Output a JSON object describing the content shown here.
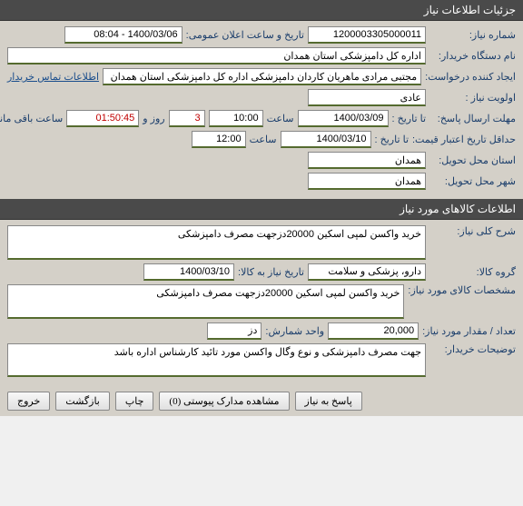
{
  "section1": {
    "title": "جزئیات اطلاعات نیاز",
    "need_number_label": "شماره نیاز:",
    "need_number": "1200003305000011",
    "public_date_label": "تاریخ و ساعت اعلان عمومی:",
    "public_date": "1400/03/06 - 08:04",
    "buyer_org_label": "نام دستگاه خریدار:",
    "buyer_org": "اداره کل دامپزشکی استان همدان",
    "requester_label": "ایجاد کننده درخواست:",
    "requester": "مجتبی مرادی ماهریان کاردان دامپزشکی اداره کل دامپزشکی استان همدان",
    "contact_link": "اطلاعات تماس خریدار",
    "priority_label": "اولویت نیاز :",
    "priority": "عادی",
    "response_deadline_label": "مهلت ارسال پاسخ:",
    "to_date_label": "تا تاریخ :",
    "response_date": "1400/03/09",
    "time_label": "ساعت",
    "response_time": "10:00",
    "days_remaining": "3",
    "days_label": "روز و",
    "time_remaining": "01:50:45",
    "remaining_label": "ساعت باقی مانده",
    "price_validity_label": "حداقل تاریخ اعتبار قیمت:",
    "price_date": "1400/03/10",
    "price_time": "12:00",
    "delivery_province_label": "استان محل تحویل:",
    "delivery_province": "همدان",
    "delivery_city_label": "شهر محل تحویل:",
    "delivery_city": "همدان"
  },
  "section2": {
    "title": "اطلاعات کالاهای مورد نیاز",
    "desc_label": "شرح کلی نیاز:",
    "desc": "خرید واکسن لمپی اسکین 20000دزجهت مصرف دامپزشکی",
    "group_label": "گروه کالا:",
    "group": "دارو، پزشکی و سلامت",
    "need_by_label": "تاریخ نیاز به کالا:",
    "need_by": "1400/03/10",
    "specs_label": "مشخصات کالای مورد نیاز:",
    "specs": "خرید واکسن لمپی اسکین 20000دزجهت مصرف دامپزشکی",
    "qty_label": "تعداد / مقدار مورد نیاز:",
    "qty": "20,000",
    "unit_label": "واحد شمارش:",
    "unit": "دز",
    "buyer_notes_label": "توضیحات خریدار:",
    "buyer_notes": "جهت مصرف دامپزشکی و نوع وگال واکسن مورد تائید کارشناس اداره باشد"
  },
  "buttons": {
    "respond": "پاسخ به نیاز",
    "attachments": "مشاهده مدارک پیوستی (0)",
    "print": "چاپ",
    "back": "بازگشت",
    "exit": "خروج"
  }
}
